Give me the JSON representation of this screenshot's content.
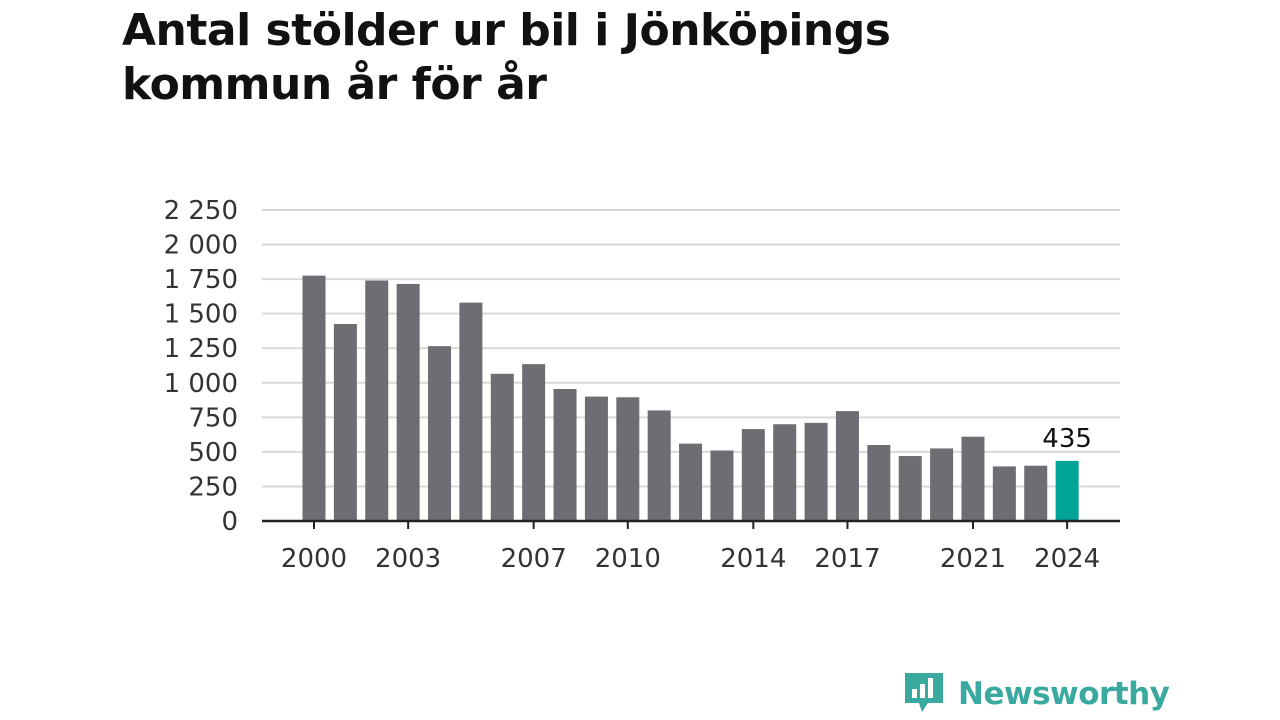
{
  "title": "Antal stölder ur bil i Jönköpings kommun år för år",
  "brand": {
    "name": "Newsworthy",
    "logo_icon": "bar-chart-speech-bubble-icon"
  },
  "colors": {
    "bar": "#6e6d73",
    "highlight": "#00a398",
    "grid": "#d9d9d9",
    "axis": "#222222",
    "brand": "#3aa9a0"
  },
  "chart_data": {
    "type": "bar",
    "title": "Antal stölder ur bil i Jönköpings kommun år för år",
    "categories": [
      "2000",
      "2001",
      "2002",
      "2003",
      "2004",
      "2005",
      "2006",
      "2007",
      "2008",
      "2009",
      "2010",
      "2011",
      "2012",
      "2013",
      "2014",
      "2015",
      "2016",
      "2017",
      "2018",
      "2019",
      "2020",
      "2021",
      "2022",
      "2023",
      "2024"
    ],
    "values": [
      1775,
      1425,
      1740,
      1715,
      1265,
      1580,
      1065,
      1135,
      955,
      900,
      895,
      800,
      560,
      510,
      665,
      700,
      710,
      795,
      550,
      470,
      525,
      610,
      395,
      400,
      435
    ],
    "highlight_category": "2024",
    "x_tick_labels": [
      "2000",
      "2003",
      "2007",
      "2010",
      "2014",
      "2017",
      "2021",
      "2024"
    ],
    "y_ticks": [
      0,
      250,
      500,
      750,
      1000,
      1250,
      1500,
      1750,
      2000,
      2250
    ],
    "y_tick_labels": [
      "0",
      "250",
      "500",
      "750",
      "1 000",
      "1 250",
      "1 500",
      "1 750",
      "2 000",
      "2 250"
    ],
    "ylim": [
      0,
      2250
    ],
    "data_labels": [
      {
        "category": "2024",
        "text": "435"
      }
    ],
    "grid": true,
    "legend": "none",
    "xlabel": "",
    "ylabel": ""
  }
}
